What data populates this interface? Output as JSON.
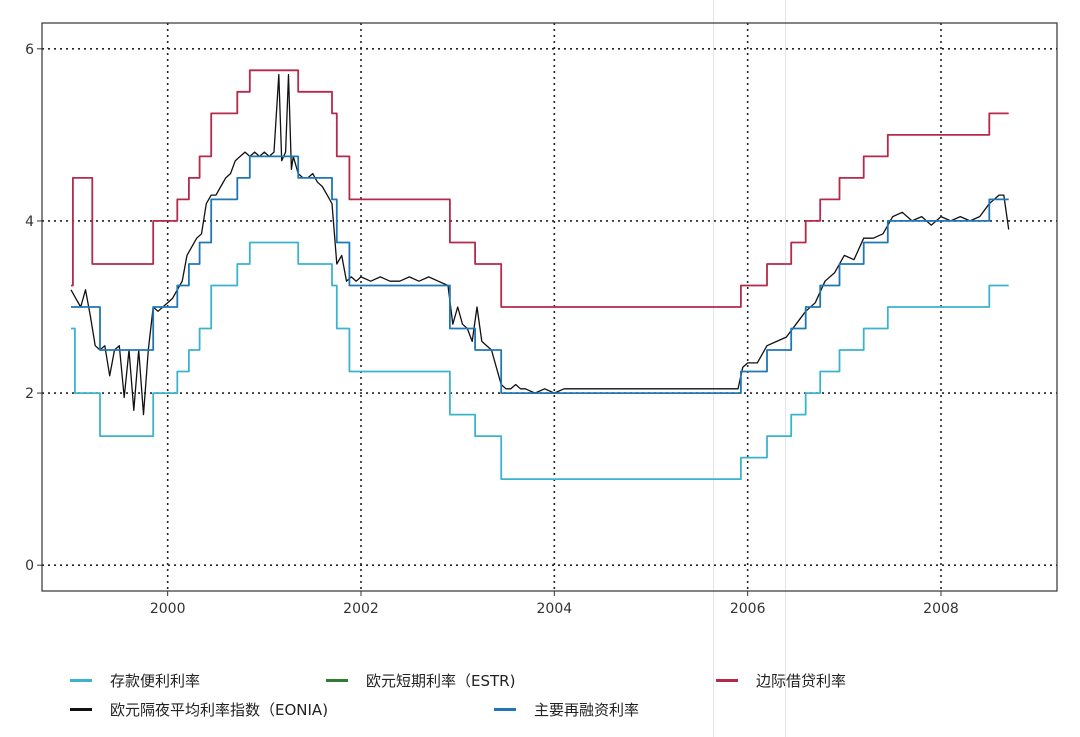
{
  "chart_data": {
    "type": "line",
    "xlim": [
      1998.7,
      2009.2
    ],
    "ylim": [
      -0.3,
      6.3
    ],
    "x_ticks": [
      2000,
      2002,
      2004,
      2006,
      2008
    ],
    "x_tick_labels": [
      "2000",
      "2002",
      "2004",
      "2006",
      "2008"
    ],
    "y_ticks": [
      0,
      2,
      4,
      6
    ],
    "y_tick_labels": [
      "0",
      "2",
      "4",
      "6"
    ],
    "grid": "dotted",
    "legend_position": "bottom",
    "series": [
      {
        "name": "存款便利利率",
        "color": "#3bb3cf",
        "step": true,
        "points": [
          [
            1999.0,
            2.75
          ],
          [
            1999.04,
            2.0
          ],
          [
            1999.3,
            1.5
          ],
          [
            1999.85,
            2.0
          ],
          [
            2000.1,
            2.25
          ],
          [
            2000.22,
            2.5
          ],
          [
            2000.33,
            2.75
          ],
          [
            2000.45,
            3.25
          ],
          [
            2000.72,
            3.5
          ],
          [
            2000.85,
            3.75
          ],
          [
            2001.35,
            3.5
          ],
          [
            2001.7,
            3.25
          ],
          [
            2001.75,
            2.75
          ],
          [
            2001.88,
            2.25
          ],
          [
            2002.92,
            1.75
          ],
          [
            2003.18,
            1.5
          ],
          [
            2003.45,
            1.0
          ],
          [
            2005.93,
            1.25
          ],
          [
            2006.2,
            1.5
          ],
          [
            2006.45,
            1.75
          ],
          [
            2006.6,
            2.0
          ],
          [
            2006.75,
            2.25
          ],
          [
            2006.95,
            2.5
          ],
          [
            2007.2,
            2.75
          ],
          [
            2007.45,
            3.0
          ],
          [
            2008.5,
            3.25
          ],
          [
            2008.7,
            3.25
          ]
        ]
      },
      {
        "name": "欧元短期利率（ESTR)",
        "color": "#2e7d32",
        "step": false,
        "points": []
      },
      {
        "name": "边际借贷利率",
        "color": "#b5294a",
        "step": true,
        "points": [
          [
            1999.0,
            3.25
          ],
          [
            1999.02,
            4.5
          ],
          [
            1999.22,
            3.5
          ],
          [
            1999.85,
            4.0
          ],
          [
            2000.1,
            4.25
          ],
          [
            2000.22,
            4.5
          ],
          [
            2000.33,
            4.75
          ],
          [
            2000.45,
            5.25
          ],
          [
            2000.72,
            5.5
          ],
          [
            2000.85,
            5.75
          ],
          [
            2001.35,
            5.5
          ],
          [
            2001.7,
            5.25
          ],
          [
            2001.75,
            4.75
          ],
          [
            2001.88,
            4.25
          ],
          [
            2002.92,
            3.75
          ],
          [
            2003.18,
            3.5
          ],
          [
            2003.45,
            3.0
          ],
          [
            2005.93,
            3.25
          ],
          [
            2006.2,
            3.5
          ],
          [
            2006.45,
            3.75
          ],
          [
            2006.6,
            4.0
          ],
          [
            2006.75,
            4.25
          ],
          [
            2006.95,
            4.5
          ],
          [
            2007.2,
            4.75
          ],
          [
            2007.45,
            5.0
          ],
          [
            2008.5,
            5.25
          ],
          [
            2008.7,
            5.25
          ]
        ]
      },
      {
        "name": "欧元隔夜平均利率指数（EONIA)",
        "color": "#111111",
        "step": false,
        "points": [
          [
            1999.0,
            3.2
          ],
          [
            1999.05,
            3.1
          ],
          [
            1999.1,
            3.0
          ],
          [
            1999.15,
            3.2
          ],
          [
            1999.2,
            2.9
          ],
          [
            1999.25,
            2.55
          ],
          [
            1999.3,
            2.5
          ],
          [
            1999.35,
            2.55
          ],
          [
            1999.4,
            2.2
          ],
          [
            1999.45,
            2.5
          ],
          [
            1999.5,
            2.55
          ],
          [
            1999.55,
            1.95
          ],
          [
            1999.6,
            2.5
          ],
          [
            1999.65,
            1.8
          ],
          [
            1999.7,
            2.5
          ],
          [
            1999.75,
            1.75
          ],
          [
            1999.8,
            2.5
          ],
          [
            1999.85,
            3.0
          ],
          [
            1999.9,
            2.95
          ],
          [
            1999.95,
            3.0
          ],
          [
            2000.0,
            3.05
          ],
          [
            2000.05,
            3.1
          ],
          [
            2000.1,
            3.2
          ],
          [
            2000.15,
            3.3
          ],
          [
            2000.2,
            3.6
          ],
          [
            2000.25,
            3.7
          ],
          [
            2000.3,
            3.8
          ],
          [
            2000.35,
            3.85
          ],
          [
            2000.4,
            4.2
          ],
          [
            2000.45,
            4.3
          ],
          [
            2000.5,
            4.3
          ],
          [
            2000.55,
            4.4
          ],
          [
            2000.6,
            4.5
          ],
          [
            2000.65,
            4.55
          ],
          [
            2000.7,
            4.7
          ],
          [
            2000.75,
            4.75
          ],
          [
            2000.8,
            4.8
          ],
          [
            2000.85,
            4.75
          ],
          [
            2000.9,
            4.8
          ],
          [
            2000.95,
            4.75
          ],
          [
            2001.0,
            4.8
          ],
          [
            2001.05,
            4.75
          ],
          [
            2001.1,
            4.8
          ],
          [
            2001.15,
            5.7
          ],
          [
            2001.18,
            4.7
          ],
          [
            2001.22,
            4.8
          ],
          [
            2001.25,
            5.7
          ],
          [
            2001.28,
            4.6
          ],
          [
            2001.3,
            4.75
          ],
          [
            2001.35,
            4.55
          ],
          [
            2001.4,
            4.5
          ],
          [
            2001.45,
            4.5
          ],
          [
            2001.5,
            4.55
          ],
          [
            2001.55,
            4.45
          ],
          [
            2001.6,
            4.4
          ],
          [
            2001.65,
            4.3
          ],
          [
            2001.7,
            4.2
          ],
          [
            2001.75,
            3.5
          ],
          [
            2001.8,
            3.6
          ],
          [
            2001.85,
            3.3
          ],
          [
            2001.9,
            3.35
          ],
          [
            2001.95,
            3.3
          ],
          [
            2002.0,
            3.35
          ],
          [
            2002.1,
            3.3
          ],
          [
            2002.2,
            3.35
          ],
          [
            2002.3,
            3.3
          ],
          [
            2002.4,
            3.3
          ],
          [
            2002.5,
            3.35
          ],
          [
            2002.6,
            3.3
          ],
          [
            2002.7,
            3.35
          ],
          [
            2002.8,
            3.3
          ],
          [
            2002.9,
            3.25
          ],
          [
            2002.95,
            2.8
          ],
          [
            2003.0,
            3.0
          ],
          [
            2003.05,
            2.8
          ],
          [
            2003.1,
            2.75
          ],
          [
            2003.15,
            2.6
          ],
          [
            2003.2,
            3.0
          ],
          [
            2003.25,
            2.6
          ],
          [
            2003.3,
            2.55
          ],
          [
            2003.35,
            2.5
          ],
          [
            2003.4,
            2.3
          ],
          [
            2003.45,
            2.1
          ],
          [
            2003.5,
            2.05
          ],
          [
            2003.55,
            2.05
          ],
          [
            2003.6,
            2.1
          ],
          [
            2003.65,
            2.05
          ],
          [
            2003.7,
            2.05
          ],
          [
            2003.8,
            2.0
          ],
          [
            2003.9,
            2.05
          ],
          [
            2004.0,
            2.0
          ],
          [
            2004.1,
            2.05
          ],
          [
            2004.2,
            2.05
          ],
          [
            2004.3,
            2.05
          ],
          [
            2004.4,
            2.05
          ],
          [
            2004.5,
            2.05
          ],
          [
            2004.6,
            2.05
          ],
          [
            2004.7,
            2.05
          ],
          [
            2004.8,
            2.05
          ],
          [
            2004.9,
            2.05
          ],
          [
            2005.0,
            2.05
          ],
          [
            2005.1,
            2.05
          ],
          [
            2005.2,
            2.05
          ],
          [
            2005.3,
            2.05
          ],
          [
            2005.4,
            2.05
          ],
          [
            2005.5,
            2.05
          ],
          [
            2005.6,
            2.05
          ],
          [
            2005.7,
            2.05
          ],
          [
            2005.8,
            2.05
          ],
          [
            2005.9,
            2.05
          ],
          [
            2005.95,
            2.3
          ],
          [
            2006.0,
            2.35
          ],
          [
            2006.1,
            2.35
          ],
          [
            2006.2,
            2.55
          ],
          [
            2006.3,
            2.6
          ],
          [
            2006.4,
            2.65
          ],
          [
            2006.5,
            2.8
          ],
          [
            2006.6,
            2.95
          ],
          [
            2006.7,
            3.05
          ],
          [
            2006.8,
            3.3
          ],
          [
            2006.9,
            3.4
          ],
          [
            2007.0,
            3.6
          ],
          [
            2007.1,
            3.55
          ],
          [
            2007.2,
            3.8
          ],
          [
            2007.3,
            3.8
          ],
          [
            2007.4,
            3.85
          ],
          [
            2007.5,
            4.05
          ],
          [
            2007.6,
            4.1
          ],
          [
            2007.7,
            4.0
          ],
          [
            2007.8,
            4.05
          ],
          [
            2007.9,
            3.95
          ],
          [
            2008.0,
            4.05
          ],
          [
            2008.1,
            4.0
          ],
          [
            2008.2,
            4.05
          ],
          [
            2008.3,
            4.0
          ],
          [
            2008.4,
            4.05
          ],
          [
            2008.5,
            4.2
          ],
          [
            2008.6,
            4.3
          ],
          [
            2008.65,
            4.3
          ],
          [
            2008.7,
            3.9
          ]
        ]
      },
      {
        "name": "主要再融资利率",
        "color": "#1f77b4",
        "step": true,
        "points": [
          [
            1999.0,
            3.0
          ],
          [
            1999.3,
            2.5
          ],
          [
            1999.85,
            3.0
          ],
          [
            2000.1,
            3.25
          ],
          [
            2000.22,
            3.5
          ],
          [
            2000.33,
            3.75
          ],
          [
            2000.45,
            4.25
          ],
          [
            2000.72,
            4.5
          ],
          [
            2000.85,
            4.75
          ],
          [
            2001.35,
            4.5
          ],
          [
            2001.7,
            4.25
          ],
          [
            2001.75,
            3.75
          ],
          [
            2001.88,
            3.25
          ],
          [
            2002.92,
            2.75
          ],
          [
            2003.18,
            2.5
          ],
          [
            2003.45,
            2.0
          ],
          [
            2005.93,
            2.25
          ],
          [
            2006.2,
            2.5
          ],
          [
            2006.45,
            2.75
          ],
          [
            2006.6,
            3.0
          ],
          [
            2006.75,
            3.25
          ],
          [
            2006.95,
            3.5
          ],
          [
            2007.2,
            3.75
          ],
          [
            2007.45,
            4.0
          ],
          [
            2008.5,
            4.25
          ],
          [
            2008.7,
            4.25
          ]
        ]
      }
    ],
    "legend": [
      {
        "label": "存款便利利率",
        "color": "#3bb3cf"
      },
      {
        "label": "欧元短期利率（ESTR)",
        "color": "#2e7d32"
      },
      {
        "label": "边际借贷利率",
        "color": "#b5294a"
      },
      {
        "label": "欧元隔夜平均利率指数（EONIA)",
        "color": "#111111"
      },
      {
        "label": "主要再融资利率",
        "color": "#1f77b4"
      }
    ]
  }
}
